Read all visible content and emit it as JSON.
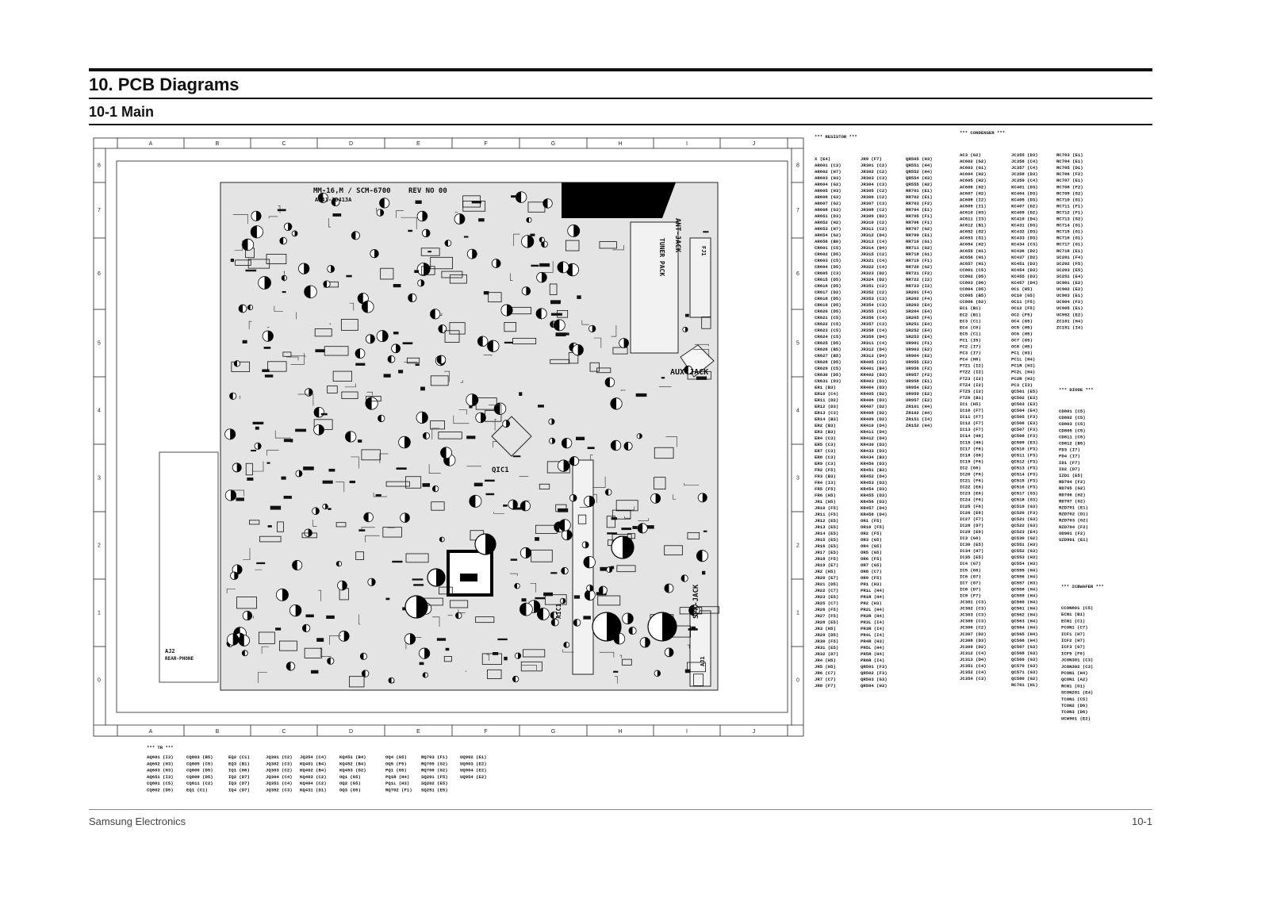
{
  "header": {
    "title": "10. PCB Diagrams",
    "subtitle": "10-1 Main"
  },
  "footer": {
    "left": "Samsung Electronics",
    "right": "10-1"
  },
  "grid": {
    "columns": [
      "A",
      "B",
      "C",
      "D",
      "E",
      "F",
      "G",
      "H",
      "I",
      "J"
    ],
    "rows": [
      "8",
      "7",
      "6",
      "5",
      "4",
      "3",
      "2",
      "1",
      "0"
    ]
  },
  "board_labels": [
    "MM-16,M / SCM-6700",
    "REV NO 00",
    "AH41-10413A",
    "TUNER PACK",
    "ANT-JACK",
    "FJ1",
    "AUX-JACK",
    "SPK-JACK",
    "AJ1",
    "QIC1",
    "AIC1",
    "AJ2",
    "REAR-PHONE"
  ],
  "lists": [
    {
      "title": "*** RESISTOR ***",
      "columns": [
        [
          "X (E4)",
          "AR601 (C3)",
          "AR602 (H7)",
          "AR603 (H3)",
          "AR604 (G2)",
          "AR605 (H3)",
          "AR606 (G3)",
          "AR607 (G2)",
          "AR608 (G3)",
          "AR651 (D3)",
          "AR652 (H2)",
          "AR653 (H7)",
          "AR654 (G2)",
          "AR656 (B0)",
          "CR601 (C5)",
          "CR602 (D5)",
          "CR603 (C5)",
          "CR604 (D5)",
          "CR605 (C3)",
          "CR615 (D5)",
          "CR616 (D5)",
          "CR617 (D2)",
          "CR618 (D5)",
          "CR619 (D5)",
          "CR620 (D5)",
          "CR621 (C5)",
          "CR622 (C5)",
          "CR623 (C5)",
          "CR624 (C5)",
          "CR625 (D5)",
          "CR626 (B5)",
          "CR627 (B5)",
          "CR628 (D5)",
          "CR629 (C5)",
          "CR630 (D5)",
          "CR631 (D3)",
          "ER1 (B3)",
          "ER10 (C4)",
          "ER11 (D2)",
          "ER12 (D3)",
          "ER13 (C3)",
          "ER14 (B3)",
          "ER2 (B3)",
          "ER3 (B3)",
          "ER4 (C3)",
          "ER5 (C3)",
          "ER7 (C3)",
          "ER8 (C3)",
          "ER9 (C3)",
          "FR2 (F5)",
          "FR3 (B3)",
          "FR4 (I3)",
          "FR5 (F5)",
          "FR6 (H5)",
          "JR1 (H5)",
          "JR10 (F5)",
          "JR11 (F5)",
          "JR12 (E5)",
          "JR13 (E5)",
          "JR14 (E5)",
          "JR15 (E5)",
          "JR16 (E5)",
          "JR17 (E5)",
          "JR18 (F5)",
          "JR19 (E7)",
          "JR2 (H5)",
          "JR20 (E7)",
          "JR21 (D5)",
          "JR22 (C7)",
          "JR23 (E5)",
          "JR25 (C7)",
          "JR26 (F5)",
          "JR27 (F5)",
          "JR28 (E5)",
          "JR3 (H5)",
          "JR29 (D5)",
          "JR30 (F5)",
          "JR31 (E5)",
          "JR32 (D7)",
          "JR4 (H5)",
          "JR5 (H5)",
          "JR6 (C7)",
          "JR7 (C7)",
          "JR8 (F7)"
        ],
        [
          "JR9 (F7)",
          "JR301 (C2)",
          "JR302 (C2)",
          "JR303 (C3)",
          "JR304 (C3)",
          "JR305 (C2)",
          "JR306 (C2)",
          "JR307 (C3)",
          "JR308 (C2)",
          "JR309 (D2)",
          "JR310 (C2)",
          "JR311 (C2)",
          "JR312 (D4)",
          "JR313 (C4)",
          "JR314 (D4)",
          "JR315 (C2)",
          "JR321 (C4)",
          "JR322 (C4)",
          "JR323 (D2)",
          "JR324 (D2)",
          "JR351 (C2)",
          "JR352 (C2)",
          "JR353 (C3)",
          "JR354 (C3)",
          "JR355 (C4)",
          "JR356 (C4)",
          "JR357 (C3)",
          "JR358 (C4)",
          "JR359 (D4)",
          "JR311 (C4)",
          "JR312 (D4)",
          "JR313 (D4)",
          "KR405 (C2)",
          "KR401 (B4)",
          "KR402 (D3)",
          "KR403 (D3)",
          "KR404 (D3)",
          "KR405 (D2)",
          "KR406 (D3)",
          "KR407 (D2)",
          "KR408 (D2)",
          "KR409 (D2)",
          "KR410 (D4)",
          "KR411 (D4)",
          "KR412 (D4)",
          "KR430 (D3)",
          "KR433 (D3)",
          "KR434 (B3)",
          "KR450 (D3)",
          "KR451 (B3)",
          "KR452 (D4)",
          "KR453 (D3)",
          "KR454 (D3)",
          "KR455 (D3)",
          "KR456 (D3)",
          "KR457 (D4)",
          "KR458 (D4)",
          "OR1 (F5)",
          "OR10 (F5)",
          "OR2 (F5)",
          "OR3 (G5)",
          "OR4 (G5)",
          "OR5 (G5)",
          "OR6 (F5)",
          "OR7 (G5)",
          "OR8 (C7)",
          "OR9 (F5)",
          "PR1 (H3)",
          "PR1L (H4)",
          "PR1R (H4)",
          "PR2 (H3)",
          "PR2L (H4)",
          "PR2R (H4)",
          "PR3L (I4)",
          "PR3R (I4)",
          "PR4L (I4)",
          "PR4R (H3)",
          "PR5L (H4)",
          "PR5R (H4)",
          "PR6R (I4)",
          "QR501 (F3)",
          "QR502 (F3)",
          "QR503 (G3)",
          "QR504 (H3)"
        ],
        [
          "QR505 (H3)",
          "QR551 (H4)",
          "QR552 (H4)",
          "QR554 (H3)",
          "QR555 (H2)",
          "RR701 (E1)",
          "RR702 (E1)",
          "RR703 (F2)",
          "RR704 (E1)",
          "RR705 (F1)",
          "RR706 (F1)",
          "RR707 (G2)",
          "RR709 (E1)",
          "RR710 (G1)",
          "RR711 (G2)",
          "RR718 (G1)",
          "RR719 (F1)",
          "RR720 (G2)",
          "RR721 (F2)",
          "RR722 (I2)",
          "RR723 (I2)",
          "SR201 (F4)",
          "SR202 (F4)",
          "SR203 (E4)",
          "SR204 (E4)",
          "SR205 (F4)",
          "SR251 (E4)",
          "SR252 (E4)",
          "SR253 (E4)",
          "UR901 (F1)",
          "UR903 (E2)",
          "UR904 (E2)",
          "UR955 (E2)",
          "UR956 (F2)",
          "UR957 (F2)",
          "UR958 (E1)",
          "UR954 (E2)",
          "UR959 (E2)",
          "UR957 (E2)",
          "ZR101 (H4)",
          "ZR102 (H4)",
          "ZR151 (I4)",
          "ZR152 (H4)"
        ]
      ]
    },
    {
      "title": "*** CONDENSER ***",
      "columns": [
        [
          "AC3 (G2)",
          "AC602 (G2)",
          "AC603 (G1)",
          "AC604 (H2)",
          "AC605 (H2)",
          "AC606 (H2)",
          "AC607 (H2)",
          "AC608 (I2)",
          "AC609 (I1)",
          "AC610 (H3)",
          "AC611 (I3)",
          "AC612 (B1)",
          "AC652 (G2)",
          "AC653 (G1)",
          "AC654 (H2)",
          "AC655 (H1)",
          "AC656 (H1)",
          "AC657 (H1)",
          "CC801 (C5)",
          "CC802 (D5)",
          "CC803 (D6)",
          "CC804 (D5)",
          "CC805 (B5)",
          "CC806 (D2)",
          "EC1 (B1)",
          "EC2 (B1)",
          "EC3 (C1)",
          "EC4 (C0)",
          "EC5 (C1)",
          "FC1 (I5)",
          "FC2 (I7)",
          "FC3 (I7)",
          "FC4 (H6)",
          "FTZ1 (I2)",
          "FTZ2 (I2)",
          "FTZ3 (I2)",
          "FTZ4 (I2)",
          "FTZ5 (I2)",
          "FTZ6 (B1)",
          "IC1 (H5)",
          "IC10 (F7)",
          "IC11 (F7)",
          "IC12 (F7)",
          "IC13 (F7)",
          "IC14 (H6)",
          "IC15 (H6)",
          "IC17 (F6)",
          "IC18 (G6)",
          "IC19 (F6)",
          "IC2 (G6)",
          "IC20 (F6)",
          "IC21 (F6)",
          "IC22 (E6)",
          "IC23 (E6)",
          "IC24 (F6)",
          "IC25 (F6)",
          "IC26 (E6)",
          "IC27 (F7)",
          "IC28 (D7)",
          "IC29 (E6)",
          "IC3 (G6)",
          "IC30 (E5)",
          "IC34 (H7)",
          "IC35 (E5)",
          "IC4 (G7)",
          "IC5 (G6)",
          "IC6 (G7)",
          "IC7 (G7)",
          "IC8 (D7)",
          "IC9 (F7)",
          "JC301 (C3)",
          "JC302 (C3)",
          "JC303 (C3)",
          "JC305 (C3)",
          "JC306 (C2)",
          "JC307 (D2)",
          "JC308 (D3)",
          "JC309 (D2)",
          "JC312 (C4)",
          "JC313 (D4)",
          "JC351 (C4)",
          "JC352 (C4)",
          "JC354 (C3)"
        ],
        [
          "JC355 (D3)",
          "JC356 (C4)",
          "JC357 (C4)",
          "JC358 (D3)",
          "JC359 (C4)",
          "KC401 (D3)",
          "KC404 (D3)",
          "KC405 (D3)",
          "KC407 (D2)",
          "KC409 (D2)",
          "KC410 (D4)",
          "KC431 (D3)",
          "KC432 (D3)",
          "KC433 (D3)",
          "KC434 (C3)",
          "KC436 (D2)",
          "KC437 (D2)",
          "KC451 (D3)",
          "KC454 (D3)",
          "KC455 (D3)",
          "KC457 (D4)",
          "OC1 (H5)",
          "OC10 (G5)",
          "OC11 (F5)",
          "OC12 (F5)",
          "OC2 (F5)",
          "OC4 (G5)",
          "OC5 (H5)",
          "OC6 (H5)",
          "OC7 (G5)",
          "OC8 (H5)",
          "PC1 (H3)",
          "PC1L (H4)",
          "PC1R (H3)",
          "PC2L (H4)",
          "PC2R (H3)",
          "PC3 (I3)",
          "QC501 (E5)",
          "QC502 (E3)",
          "QC503 (E3)",
          "QC504 (E4)",
          "QC505 (F3)",
          "QC506 (E3)",
          "QC507 (F3)",
          "QC508 (F3)",
          "QC509 (E3)",
          "QC510 (F3)",
          "QC511 (F3)",
          "QC512 (F3)",
          "QC513 (F3)",
          "QC514 (F3)",
          "QC515 (F3)",
          "QC516 (F3)",
          "QC517 (G3)",
          "QC518 (G3)",
          "QC519 (G3)",
          "QC520 (F3)",
          "QC521 (G3)",
          "QC522 (G3)",
          "QC523 (E4)",
          "QC530 (G2)",
          "QC551 (H3)",
          "QC552 (G3)",
          "QC553 (H3)",
          "QC554 (H3)",
          "QC555 (H4)",
          "QC556 (H4)",
          "QC557 (H3)",
          "QC558 (H4)",
          "QC559 (H4)",
          "QC560 (H4)",
          "QC561 (H4)",
          "QC562 (H4)",
          "QC563 (H4)",
          "QC564 (H4)",
          "QC565 (H4)",
          "QC566 (H4)",
          "QC567 (G3)",
          "QC568 (G3)",
          "QC569 (G3)",
          "QC570 (G3)",
          "QC571 (G3)",
          "QC580 (G2)",
          "RC701 (H1)"
        ],
        [
          "RC703 (E1)",
          "RC704 (E1)",
          "RC705 (D1)",
          "RC706 (F2)",
          "RC707 (E1)",
          "RC708 (F2)",
          "RC709 (G2)",
          "RC710 (G1)",
          "RC711 (F1)",
          "RC712 (F1)",
          "RC713 (G2)",
          "RC714 (G1)",
          "RC715 (G1)",
          "RC716 (G1)",
          "RC717 (G1)",
          "RC718 (E1)",
          "SC201 (F4)",
          "SC202 (F5)",
          "SC203 (E5)",
          "SC251 (E4)",
          "UC901 (E2)",
          "UC902 (E2)",
          "UC903 (E1)",
          "UC904 (F2)",
          "UC905 (E1)",
          "UC952 (E2)",
          "ZC101 (H4)",
          "ZC151 (I4)"
        ]
      ]
    },
    {
      "title": "*** DIODE ***",
      "columns": [
        [
          "CD801 (C5)",
          "CD802 (C5)",
          "CD803 (C5)",
          "CD805 (C5)",
          "CD811 (C5)",
          "CD812 (B5)",
          "FD3 (I7)",
          "FD4 (I7)",
          "ID1 (F7)",
          "ID2 (D7)",
          "IZD1 (E5)",
          "RD704 (F2)",
          "RD705 (G2)",
          "RD706 (H2)",
          "RD707 (G2)",
          "RZD701 (E1)",
          "RZD702 (D1)",
          "RZD703 (G2)",
          "RZD704 (F2)",
          "UD901 (F2)",
          "UZD901 (E1)"
        ]
      ]
    },
    {
      "title": "*** ICBWAFER ***",
      "columns": [
        [
          "CCON801 (C5)",
          "ECN1 (B1)",
          "ECN1 (C1)",
          "FCON1 (C7)",
          "ICF1 (H7)",
          "ICF2 (H7)",
          "ICF3 (G7)",
          "ICF5 (F6)",
          "JCON301 (C3)",
          "JCON302 (C3)",
          "PCON1 (H4)",
          "QCON1 (A2)",
          "RCN1 (G1)",
          "SCON201 (E4)",
          "TCON1 (C5)",
          "TCON2 (D6)",
          "TCON3 (D6)",
          "UCW901 (E2)"
        ]
      ]
    },
    {
      "title": "*** TR ***",
      "columns": [
        [
          "AQ601 (I3)",
          "AQ602 (H3)",
          "AQ603 (H3)",
          "AQ651 (I3)",
          "CQ801 (C5)",
          "CQ802 (D5)"
        ],
        [
          "CQ803 (B5)",
          "CQ805 (C5)",
          "CQ806 (D5)",
          "CQ808 (D5)",
          "CQ811 (C2)",
          "EQ1 (C1)"
        ],
        [
          "EQ2 (C1)",
          "EQ3 (B1)",
          "IQ1 (H6)",
          "IQ2 (D7)",
          "IQ3 (D7)",
          "IQ4 (D7)"
        ],
        [
          "JQ301 (C2)",
          "JQ302 (C3)",
          "JQ303 (C2)",
          "JQ304 (C4)",
          "JQ351 (C4)",
          "JQ352 (C3)"
        ],
        [
          "JQ354 (C4)",
          "KQ401 (B4)",
          "KQ402 (B4)",
          "KQ403 (C2)",
          "KQ404 (C2)",
          "KQ431 (D1)"
        ],
        [
          "KQ451 (B4)",
          "KQ452 (B4)",
          "KQ453 (D2)",
          "OQ1 (G5)",
          "OQ2 (G5)",
          "OQ3 (G5)"
        ],
        [
          "OQ4 (G5)",
          "OQ5 (F5)",
          "PQ1 (G5)",
          "PQ1R (H4)",
          "PQ1L (H3)",
          "RQ702 (F1)"
        ],
        [
          "RQ703 (F1)",
          "RQ705 (G2)",
          "RQ706 (G2)",
          "SQ201 (F5)",
          "SQ202 (E5)",
          "SQ251 (E5)"
        ],
        [
          "UQ902 (E1)",
          "UQ903 (E2)",
          "UQ904 (E2)",
          "UQ954 (E2)"
        ]
      ]
    }
  ]
}
